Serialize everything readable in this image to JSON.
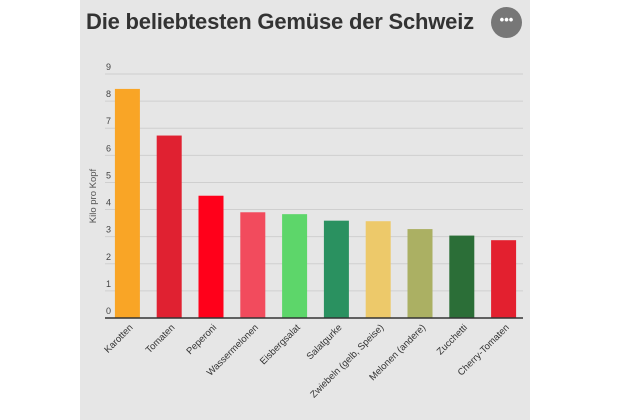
{
  "header": {
    "title": "Die beliebtesten Gemüse der Schweiz",
    "menu_icon": "more-horizontal-icon",
    "menu_label": "•••"
  },
  "chart_data": {
    "type": "bar",
    "title": "Die beliebtesten Gemüse der Schweiz",
    "xlabel": "",
    "ylabel": "Kilo pro Kopf",
    "ylim": [
      0,
      9
    ],
    "yticks": [
      0,
      1,
      2,
      3,
      4,
      5,
      6,
      7,
      8,
      9
    ],
    "grid": true,
    "categories": [
      "Karotten",
      "Tomaten",
      "Peperoni",
      "Wassermelonen",
      "Eisbergsalat",
      "Salatgurke",
      "Zwiebeln (gelb, Speise)",
      "Melonen (andere)",
      "Zucchetti",
      "Cherry-Tomaten"
    ],
    "values": [
      8.45,
      6.73,
      4.51,
      3.9,
      3.83,
      3.59,
      3.57,
      3.28,
      3.04,
      2.87
    ],
    "colors": [
      "#F9A526",
      "#E02131",
      "#FF001A",
      "#F24B5D",
      "#5DD66A",
      "#2A9160",
      "#EDC96A",
      "#ABB063",
      "#2B6E37",
      "#E3202F"
    ]
  }
}
